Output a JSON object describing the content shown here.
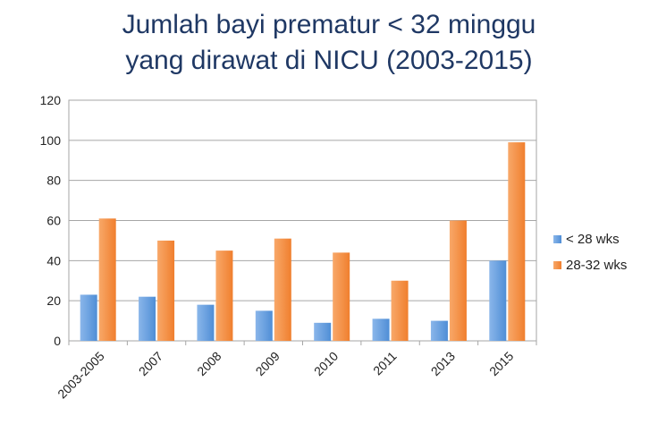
{
  "chart_data": {
    "type": "bar",
    "title_lines": [
      "Jumlah bayi prematur < 32 minggu",
      "yang dirawat di NICU (2003-2015)"
    ],
    "categories": [
      "2003-2005",
      "2007",
      "2008",
      "2009",
      "2010",
      "2011",
      "2013",
      "2015"
    ],
    "series": [
      {
        "name": "< 28 wks",
        "values": [
          23,
          22,
          18,
          15,
          9,
          11,
          10,
          40
        ],
        "color": "#4f8ed6"
      },
      {
        "name": "28-32 wks",
        "values": [
          61,
          50,
          45,
          51,
          44,
          30,
          60,
          99
        ],
        "color": "#f07f2e"
      }
    ],
    "ylim": [
      0,
      120
    ],
    "yticks": [
      0,
      20,
      40,
      60,
      80,
      100,
      120
    ],
    "grid": true,
    "legend_position": "right",
    "xlabel": "",
    "ylabel": ""
  }
}
